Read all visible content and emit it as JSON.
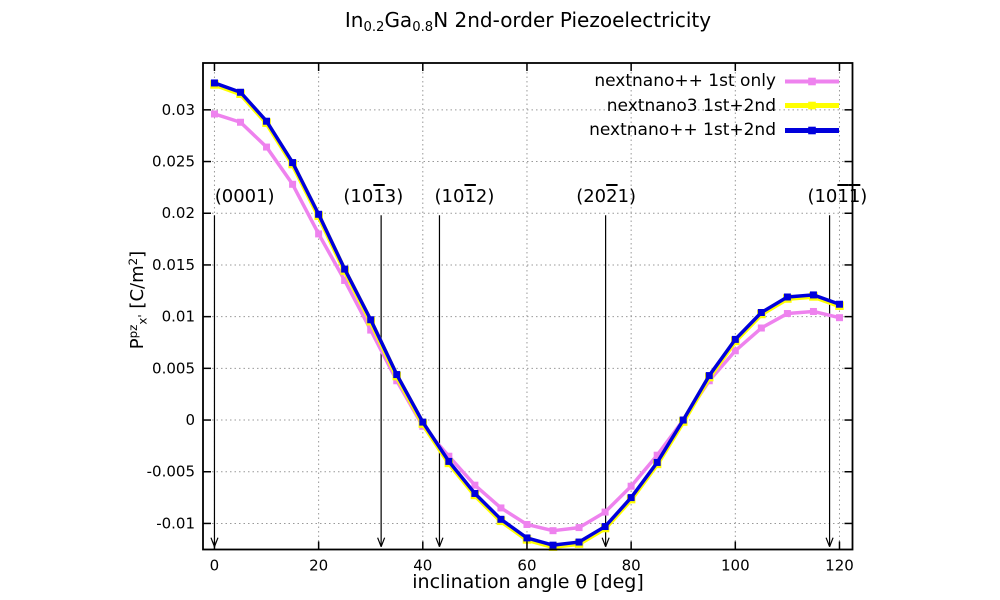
{
  "figure": {
    "title_plain": "In0.2Ga0.8N 2nd-order Piezoelectricity",
    "title_segments": [
      {
        "t": "In"
      },
      {
        "t": "0.2",
        "sub": true
      },
      {
        "t": "Ga"
      },
      {
        "t": "0.8",
        "sub": true
      },
      {
        "t": "N 2nd-order Piezoelectricity"
      }
    ]
  },
  "chart_data": {
    "type": "line",
    "title": "In0.2Ga0.8N 2nd-order Piezoelectricity",
    "xlabel": "inclination angle θ [deg]",
    "ylabel": "Ppz_x' [C/m2]",
    "ylabel_segments": [
      {
        "t": "P"
      },
      {
        "t": "pz",
        "sup": true
      },
      {
        "t": "x'",
        "sub": true
      },
      {
        "t": " [C/m"
      },
      {
        "t": "2",
        "sup": true
      },
      {
        "t": "]"
      }
    ],
    "xlim": [
      -2.2,
      122.5
    ],
    "ylim": [
      -0.01252,
      0.03453
    ],
    "xticks": [
      0,
      20,
      40,
      60,
      80,
      100,
      120
    ],
    "xtick_labels": [
      "0",
      "20",
      "40",
      "60",
      "80",
      "100",
      "120"
    ],
    "yticks": [
      -0.01,
      -0.005,
      0,
      0.005,
      0.01,
      0.015,
      0.02,
      0.025,
      0.03
    ],
    "ytick_labels": [
      "-0.01",
      "-0.005",
      "0",
      "0.005",
      "0.01",
      "0.015",
      "0.02",
      "0.025",
      "0.03"
    ],
    "grid": true,
    "legend_position": "top-right-inside",
    "x": [
      0,
      5,
      10,
      15,
      20,
      25,
      30,
      35,
      40,
      45,
      50,
      55,
      60,
      65,
      70,
      75,
      80,
      85,
      90,
      95,
      100,
      105,
      110,
      115,
      120
    ],
    "series": [
      {
        "name": "nextnano++ 1st only",
        "color": "#ee82ee",
        "marker": "square",
        "values": [
          0.0296,
          0.0288,
          0.0264,
          0.0228,
          0.018,
          0.0135,
          0.0087,
          0.0038,
          -0.0006,
          -0.0035,
          -0.0063,
          -0.0085,
          -0.0101,
          -0.0107,
          -0.0104,
          -0.0089,
          -0.0064,
          -0.0034,
          0.0,
          0.0038,
          0.0067,
          0.0089,
          0.0103,
          0.0105,
          0.0099
        ]
      },
      {
        "name": "nextnano3 1st+2nd",
        "color": "#ffff00",
        "marker": "square",
        "values": [
          0.0326,
          0.0317,
          0.0289,
          0.0249,
          0.0199,
          0.0146,
          0.0097,
          0.0044,
          -0.0002,
          -0.004,
          -0.0071,
          -0.0096,
          -0.0114,
          -0.0121,
          -0.0118,
          -0.0103,
          -0.0075,
          -0.0041,
          0.0,
          0.0043,
          0.0078,
          0.0104,
          0.0119,
          0.0121,
          0.0112
        ]
      },
      {
        "name": "nextnano++ 1st+2nd",
        "color": "#0000dc",
        "marker": "square",
        "values": [
          0.0326,
          0.0317,
          0.0289,
          0.0249,
          0.0199,
          0.0146,
          0.0097,
          0.0044,
          -0.0002,
          -0.004,
          -0.0071,
          -0.0096,
          -0.0114,
          -0.0121,
          -0.0118,
          -0.0103,
          -0.0075,
          -0.0041,
          0.0,
          0.0043,
          0.0078,
          0.0104,
          0.0119,
          0.0121,
          0.0112
        ]
      }
    ],
    "annotations": [
      {
        "plain": "(0001)",
        "segments": [
          {
            "t": "(0001)"
          }
        ],
        "arrow_x_deg": 0,
        "label_x_deg": 5.8
      },
      {
        "plain": "(10-13)",
        "segments": [
          {
            "t": "(10"
          },
          {
            "t": "1",
            "bar": true
          },
          {
            "t": "3)"
          }
        ],
        "arrow_x_deg": 32.0,
        "label_x_deg": 30.5
      },
      {
        "plain": "(10-12)",
        "segments": [
          {
            "t": "(10"
          },
          {
            "t": "1",
            "bar": true
          },
          {
            "t": "2)"
          }
        ],
        "arrow_x_deg": 43.2,
        "label_x_deg": 48.0
      },
      {
        "plain": "(20-21)",
        "segments": [
          {
            "t": "(20"
          },
          {
            "t": "2",
            "bar": true
          },
          {
            "t": "1)"
          }
        ],
        "arrow_x_deg": 75.1,
        "label_x_deg": 75.2
      },
      {
        "plain": "(10-1-1)",
        "segments": [
          {
            "t": "(10"
          },
          {
            "t": "1",
            "bar": true
          },
          {
            "t": "1",
            "bar": true
          },
          {
            "t": ")"
          }
        ],
        "arrow_x_deg": 118.1,
        "label_x_deg": 119.6
      }
    ],
    "arrow_y_top": 0.0198,
    "arrow_y_bottom": -0.01225,
    "colors": {
      "axis": "#000000",
      "grid": "#999999",
      "background": "#ffffff"
    }
  }
}
